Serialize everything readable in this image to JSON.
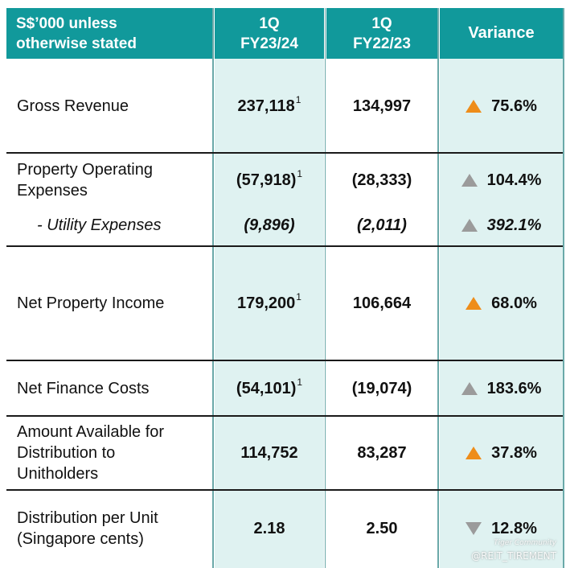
{
  "header": {
    "col1": "S$’000 unless\notherwise stated",
    "col2": "1Q\nFY23/24",
    "col3": "1Q\nFY22/23",
    "col4": "Variance"
  },
  "rows": [
    {
      "label": "Gross Revenue",
      "cur": "237,118",
      "cur_fn": "1",
      "prev": "134,997",
      "variance": "75.6%",
      "trend": "up-orange"
    },
    {
      "label": "Property Operating\nExpenses",
      "cur": "(57,918)",
      "cur_fn": "1",
      "prev": "(28,333)",
      "variance": "104.4%",
      "trend": "up-grey"
    },
    {
      "label": "-  Utility Expenses",
      "cur": "(9,896)",
      "cur_fn": "",
      "prev": "(2,011)",
      "variance": "392.1%",
      "trend": "up-grey"
    },
    {
      "label": "Net Property Income",
      "cur": "179,200",
      "cur_fn": "1",
      "prev": "106,664",
      "variance": "68.0%",
      "trend": "up-orange"
    },
    {
      "label": "Net Finance Costs",
      "cur": "(54,101)",
      "cur_fn": "1",
      "prev": "(19,074)",
      "variance": "183.6%",
      "trend": "up-grey"
    },
    {
      "label": "Amount Available for\nDistribution to\nUnitholders",
      "cur": "114,752",
      "cur_fn": "",
      "prev": "83,287",
      "variance": "37.8%",
      "trend": "up-orange"
    },
    {
      "label": "Distribution per Unit\n(Singapore cents)",
      "cur": "2.18",
      "cur_fn": "",
      "prev": "2.50",
      "variance": "12.8%",
      "trend": "down-grey"
    }
  ],
  "colors": {
    "header_bg": "#11999b",
    "highlight_col_bg": "#dff2f1",
    "up_orange": "#ee8d1a",
    "grey_arrow": "#9b9b9b"
  },
  "watermark": {
    "line1": "Tiger Community",
    "line2": "@REIT_TIREMENT"
  }
}
